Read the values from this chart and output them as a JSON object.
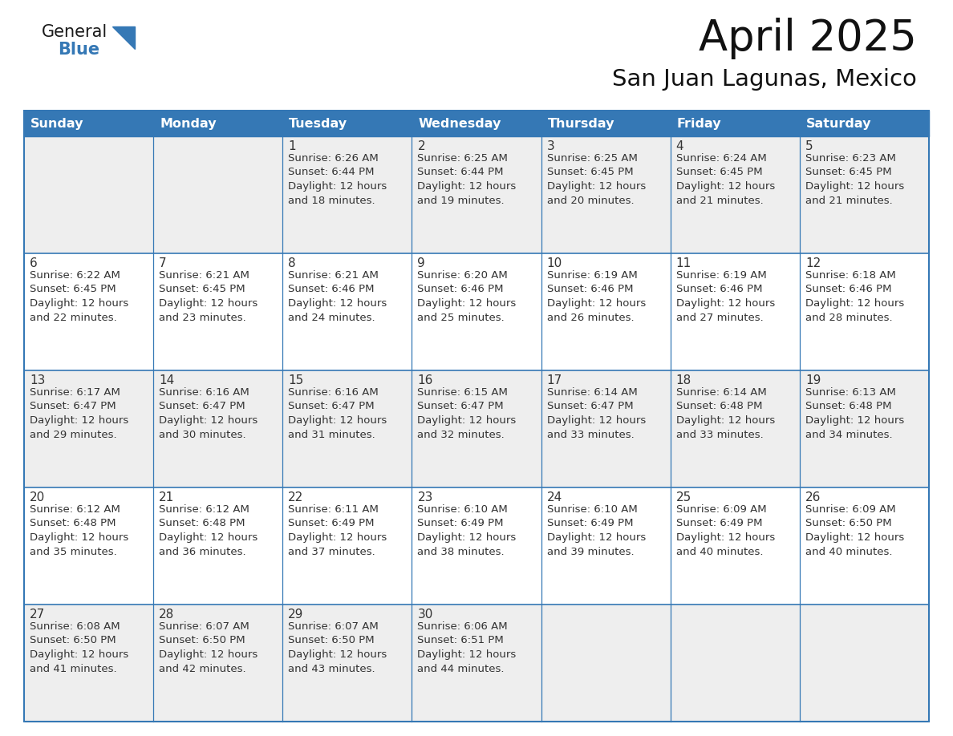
{
  "title": "April 2025",
  "subtitle": "San Juan Lagunas, Mexico",
  "header_color": "#3578b5",
  "header_text_color": "#ffffff",
  "cell_bg_color": "#ffffff",
  "cell_alt_bg_color": "#eeeeee",
  "border_color": "#3578b5",
  "day_number_color": "#333333",
  "cell_text_color": "#333333",
  "days_of_week": [
    "Sunday",
    "Monday",
    "Tuesday",
    "Wednesday",
    "Thursday",
    "Friday",
    "Saturday"
  ],
  "weeks": [
    [
      {
        "day": "",
        "sunrise": "",
        "sunset": "",
        "daylight": ""
      },
      {
        "day": "",
        "sunrise": "",
        "sunset": "",
        "daylight": ""
      },
      {
        "day": "1",
        "sunrise": "6:26 AM",
        "sunset": "6:44 PM",
        "daylight": "18 minutes."
      },
      {
        "day": "2",
        "sunrise": "6:25 AM",
        "sunset": "6:44 PM",
        "daylight": "19 minutes."
      },
      {
        "day": "3",
        "sunrise": "6:25 AM",
        "sunset": "6:45 PM",
        "daylight": "20 minutes."
      },
      {
        "day": "4",
        "sunrise": "6:24 AM",
        "sunset": "6:45 PM",
        "daylight": "21 minutes."
      },
      {
        "day": "5",
        "sunrise": "6:23 AM",
        "sunset": "6:45 PM",
        "daylight": "21 minutes."
      }
    ],
    [
      {
        "day": "6",
        "sunrise": "6:22 AM",
        "sunset": "6:45 PM",
        "daylight": "22 minutes."
      },
      {
        "day": "7",
        "sunrise": "6:21 AM",
        "sunset": "6:45 PM",
        "daylight": "23 minutes."
      },
      {
        "day": "8",
        "sunrise": "6:21 AM",
        "sunset": "6:46 PM",
        "daylight": "24 minutes."
      },
      {
        "day": "9",
        "sunrise": "6:20 AM",
        "sunset": "6:46 PM",
        "daylight": "25 minutes."
      },
      {
        "day": "10",
        "sunrise": "6:19 AM",
        "sunset": "6:46 PM",
        "daylight": "26 minutes."
      },
      {
        "day": "11",
        "sunrise": "6:19 AM",
        "sunset": "6:46 PM",
        "daylight": "27 minutes."
      },
      {
        "day": "12",
        "sunrise": "6:18 AM",
        "sunset": "6:46 PM",
        "daylight": "28 minutes."
      }
    ],
    [
      {
        "day": "13",
        "sunrise": "6:17 AM",
        "sunset": "6:47 PM",
        "daylight": "29 minutes."
      },
      {
        "day": "14",
        "sunrise": "6:16 AM",
        "sunset": "6:47 PM",
        "daylight": "30 minutes."
      },
      {
        "day": "15",
        "sunrise": "6:16 AM",
        "sunset": "6:47 PM",
        "daylight": "31 minutes."
      },
      {
        "day": "16",
        "sunrise": "6:15 AM",
        "sunset": "6:47 PM",
        "daylight": "32 minutes."
      },
      {
        "day": "17",
        "sunrise": "6:14 AM",
        "sunset": "6:47 PM",
        "daylight": "33 minutes."
      },
      {
        "day": "18",
        "sunrise": "6:14 AM",
        "sunset": "6:48 PM",
        "daylight": "33 minutes."
      },
      {
        "day": "19",
        "sunrise": "6:13 AM",
        "sunset": "6:48 PM",
        "daylight": "34 minutes."
      }
    ],
    [
      {
        "day": "20",
        "sunrise": "6:12 AM",
        "sunset": "6:48 PM",
        "daylight": "35 minutes."
      },
      {
        "day": "21",
        "sunrise": "6:12 AM",
        "sunset": "6:48 PM",
        "daylight": "36 minutes."
      },
      {
        "day": "22",
        "sunrise": "6:11 AM",
        "sunset": "6:49 PM",
        "daylight": "37 minutes."
      },
      {
        "day": "23",
        "sunrise": "6:10 AM",
        "sunset": "6:49 PM",
        "daylight": "38 minutes."
      },
      {
        "day": "24",
        "sunrise": "6:10 AM",
        "sunset": "6:49 PM",
        "daylight": "39 minutes."
      },
      {
        "day": "25",
        "sunrise": "6:09 AM",
        "sunset": "6:49 PM",
        "daylight": "40 minutes."
      },
      {
        "day": "26",
        "sunrise": "6:09 AM",
        "sunset": "6:50 PM",
        "daylight": "40 minutes."
      }
    ],
    [
      {
        "day": "27",
        "sunrise": "6:08 AM",
        "sunset": "6:50 PM",
        "daylight": "41 minutes."
      },
      {
        "day": "28",
        "sunrise": "6:07 AM",
        "sunset": "6:50 PM",
        "daylight": "42 minutes."
      },
      {
        "day": "29",
        "sunrise": "6:07 AM",
        "sunset": "6:50 PM",
        "daylight": "43 minutes."
      },
      {
        "day": "30",
        "sunrise": "6:06 AM",
        "sunset": "6:51 PM",
        "daylight": "44 minutes."
      },
      {
        "day": "",
        "sunrise": "",
        "sunset": "",
        "daylight": ""
      },
      {
        "day": "",
        "sunrise": "",
        "sunset": "",
        "daylight": ""
      },
      {
        "day": "",
        "sunrise": "",
        "sunset": "",
        "daylight": ""
      }
    ]
  ],
  "logo_general_color": "#1a1a1a",
  "logo_blue_color": "#3578b5",
  "title_fontsize": 38,
  "subtitle_fontsize": 21,
  "header_fontsize": 11.5,
  "day_number_fontsize": 11,
  "cell_text_fontsize": 9.5
}
